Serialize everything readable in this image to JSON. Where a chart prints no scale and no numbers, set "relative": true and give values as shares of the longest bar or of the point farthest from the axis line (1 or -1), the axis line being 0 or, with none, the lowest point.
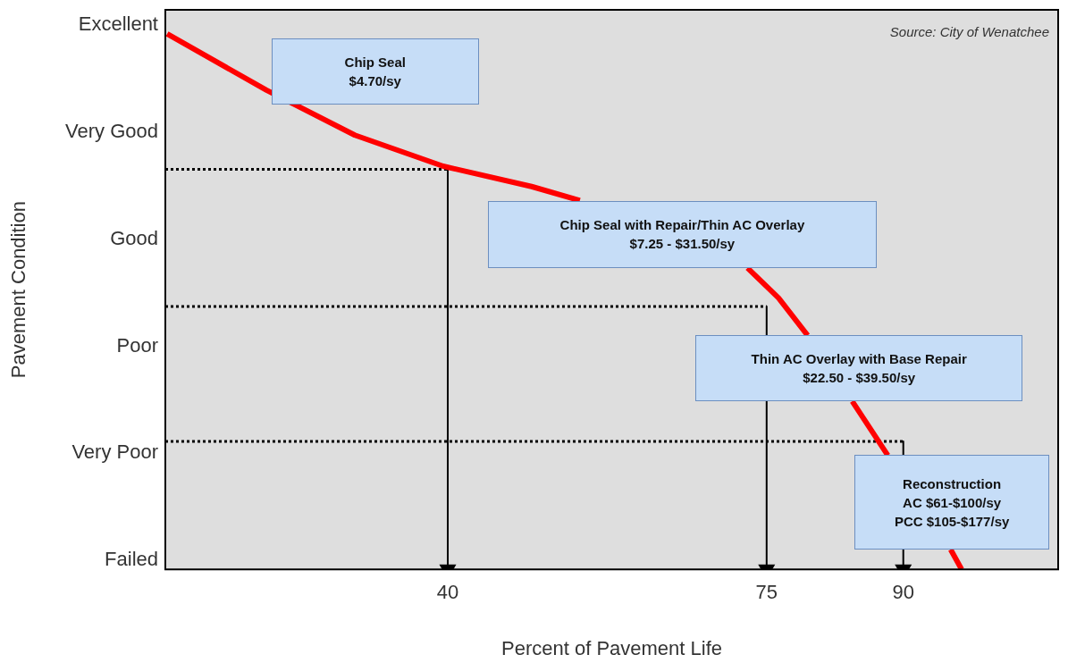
{
  "chart_data": {
    "type": "line",
    "relative": true,
    "xlabel": "Percent of Pavement Life",
    "xlim": [
      9,
      107
    ],
    "xticks": [
      40,
      75,
      90
    ],
    "grid": false,
    "legend": false,
    "series": [
      {
        "color": "#ff0000",
        "line_style": "solid",
        "x": [
          9.2,
          20.1,
          29.8,
          39.5,
          49.2,
          54.5,
          63,
          72.9,
          76.3,
          79.5,
          82,
          84.4,
          88.3,
          92,
          95.2,
          96.4
        ],
        "values": [
          1,
          0.895,
          0.811,
          0.753,
          0.715,
          0.689,
          null,
          0.563,
          0.507,
          0.437,
          null,
          0.314,
          0.213,
          null,
          0.037,
          0
        ]
      },
      {
        "color": "#000000",
        "line_style": "dotted",
        "x": [
          9,
          40
        ],
        "values": [
          0.747,
          0.747
        ]
      },
      {
        "color": "#000000",
        "line_style": "dotted",
        "x": [
          9,
          75
        ],
        "values": [
          0.491,
          0.491
        ]
      },
      {
        "color": "#000000",
        "line_style": "dotted",
        "x": [
          9,
          90
        ],
        "values": [
          0.239,
          0.239
        ]
      },
      {
        "color": "#000000",
        "line_style": "solid",
        "marker": "triangle",
        "x": [
          40,
          40
        ],
        "values": [
          0.747,
          0
        ]
      },
      {
        "color": "#000000",
        "line_style": "solid",
        "marker": "triangle",
        "x": [
          75,
          75
        ],
        "values": [
          0.491,
          0
        ]
      },
      {
        "color": "#000000",
        "line_style": "solid",
        "x": [
          90,
          90
        ],
        "values": [
          0.239,
          0.213
        ]
      },
      {
        "color": "#000000",
        "line_style": "solid",
        "marker": "triangle",
        "x": [
          90,
          90
        ],
        "values": [
          0.037,
          0
        ]
      }
    ],
    "annotations": [
      "Excellent",
      "Very Good",
      "Good",
      "Poor",
      "Very Poor",
      "Failed",
      "Chip Seal\n$4.70/sy",
      "Chip Seal with Repair/Thin AC Overlay\n$7.25 - $31.50/sy",
      "Thin AC Overlay with Base Repair\n$22.50 - $39.50/sy",
      "Reconstruction\nAC $61-$100/sy\nPCC $105-$177/sy",
      "Source: City of Wenatchee",
      "Pavement Condition"
    ]
  }
}
